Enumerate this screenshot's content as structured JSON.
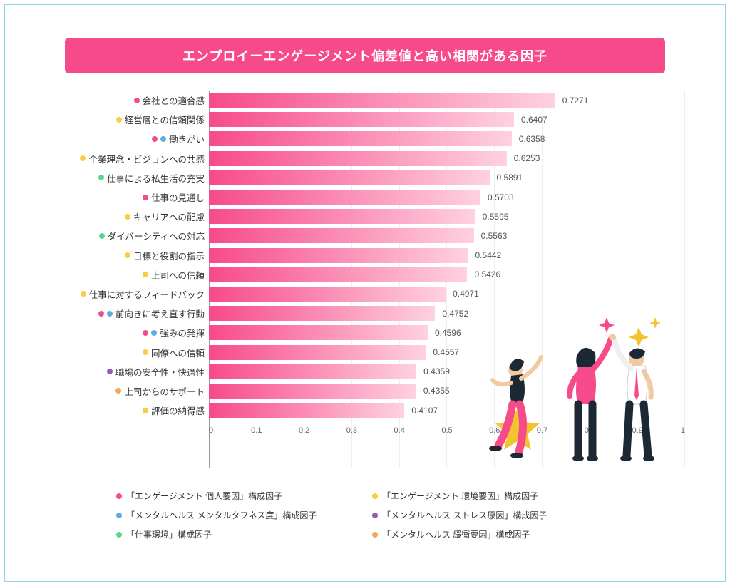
{
  "title": "エンプロイーエンゲージメント偏差値と高い相関がある因子",
  "chart": {
    "type": "horizontal-bar",
    "xlim": [
      0,
      1
    ],
    "xtick_step": 0.1,
    "xticks": [
      "0",
      "0.1",
      "0.2",
      "0.3",
      "0.4",
      "0.5",
      "0.6",
      "0.7",
      "0.8",
      "0.9",
      "1"
    ],
    "bar_gradient_start": "#f74a8a",
    "bar_gradient_end": "#ffd1e1",
    "grid_color": "#eeeeee",
    "axis_color": "#999999",
    "value_color": "#555555",
    "label_color": "#333333",
    "label_fontsize": 12.5,
    "value_fontsize": 12,
    "items": [
      {
        "label": "会社との適合感",
        "value": 0.7271,
        "dots": [
          "red"
        ]
      },
      {
        "label": "経営層との信頼関係",
        "value": 0.6407,
        "dots": [
          "yellow"
        ]
      },
      {
        "label": "働きがい",
        "value": 0.6358,
        "dots": [
          "red",
          "blue"
        ]
      },
      {
        "label": "企業理念・ビジョンへの共感",
        "value": 0.6253,
        "dots": [
          "yellow"
        ]
      },
      {
        "label": "仕事による私生活の充実",
        "value": 0.5891,
        "dots": [
          "green"
        ]
      },
      {
        "label": "仕事の見通し",
        "value": 0.5703,
        "dots": [
          "red"
        ]
      },
      {
        "label": "キャリアへの配慮",
        "value": 0.5595,
        "dots": [
          "yellow"
        ]
      },
      {
        "label": "ダイバーシティへの対応",
        "value": 0.5563,
        "dots": [
          "green"
        ]
      },
      {
        "label": "目標と役割の指示",
        "value": 0.5442,
        "dots": [
          "yellow"
        ]
      },
      {
        "label": "上司への信頼",
        "value": 0.5426,
        "dots": [
          "yellow"
        ]
      },
      {
        "label": "仕事に対するフィードバック",
        "value": 0.4971,
        "dots": [
          "yellow"
        ]
      },
      {
        "label": "前向きに考え直す行動",
        "value": 0.4752,
        "dots": [
          "red",
          "blue"
        ]
      },
      {
        "label": "強みの発揮",
        "value": 0.4596,
        "dots": [
          "red",
          "blue"
        ]
      },
      {
        "label": "同僚への信頼",
        "value": 0.4557,
        "dots": [
          "yellow"
        ]
      },
      {
        "label": "職場の安全性・快適性",
        "value": 0.4359,
        "dots": [
          "purple"
        ]
      },
      {
        "label": "上司からのサポート",
        "value": 0.4355,
        "dots": [
          "orange"
        ]
      },
      {
        "label": "評価の納得感",
        "value": 0.4107,
        "dots": [
          "yellow"
        ]
      }
    ]
  },
  "legend_colors": {
    "red": "#f74a8a",
    "yellow": "#f4d03f",
    "blue": "#5dade2",
    "purple": "#9b59b6",
    "green": "#58d68d",
    "orange": "#f5a45d"
  },
  "legend": [
    {
      "color": "red",
      "text": "「エンゲージメント 個人要因」構成因子"
    },
    {
      "color": "yellow",
      "text": "「エンゲージメント 環境要因」構成因子"
    },
    {
      "color": "blue",
      "text": "「メンタルヘルス メンタルタフネス度」構成因子"
    },
    {
      "color": "purple",
      "text": "「メンタルヘルス ストレス原因」構成因子"
    },
    {
      "color": "green",
      "text": "「仕事環境」構成因子"
    },
    {
      "color": "orange",
      "text": "「メンタルヘルス 緩衝要因」構成因子"
    }
  ],
  "illustration": {
    "star_color": "#f4c430",
    "sparkle_colors": [
      "#f74a8a",
      "#f4c430"
    ],
    "person1": {
      "top": "#1c2833",
      "bottom": "#f74a8a",
      "hair": "#1c2833"
    },
    "person2": {
      "top": "#f74a8a",
      "bottom": "#1c2833",
      "hair": "#1c2833"
    },
    "person3": {
      "top": "#ffffff",
      "tie": "#f74a8a",
      "bottom": "#1c2833",
      "hair": "#1c2833"
    }
  },
  "frame": {
    "outer_border": "#8fd3e8",
    "inner_border": "#e6e6e6",
    "title_bg": "#f74a8a",
    "title_color": "#ffffff"
  }
}
